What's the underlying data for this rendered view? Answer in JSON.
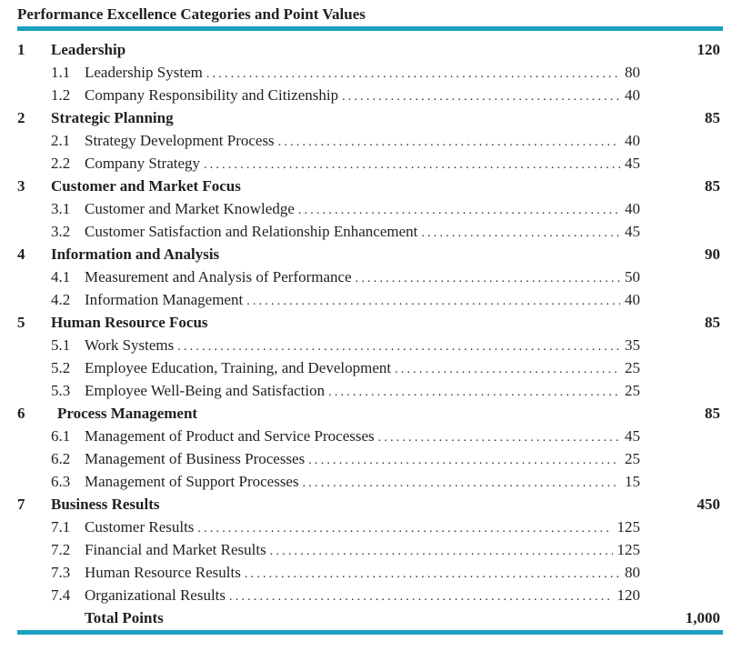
{
  "title": "Performance Excellence Categories and Point Values",
  "categories": [
    {
      "num": "1",
      "name": "Leadership",
      "points": "120",
      "subs": [
        {
          "num": "1.1",
          "name": "Leadership System",
          "points": "80"
        },
        {
          "num": "1.2",
          "name": "Company Responsibility and Citizenship",
          "points": "40"
        }
      ]
    },
    {
      "num": "2",
      "name": "Strategic Planning",
      "points": "85",
      "subs": [
        {
          "num": "2.1",
          "name": "Strategy Development Process",
          "points": "40"
        },
        {
          "num": "2.2",
          "name": "Company Strategy",
          "points": "45"
        }
      ]
    },
    {
      "num": "3",
      "name": "Customer and Market Focus",
      "points": "85",
      "subs": [
        {
          "num": "3.1",
          "name": "Customer and Market Knowledge",
          "points": "40"
        },
        {
          "num": "3.2",
          "name": "Customer Satisfaction and Relationship Enhancement",
          "points": "45"
        }
      ]
    },
    {
      "num": "4",
      "name": "Information and Analysis",
      "points": "90",
      "subs": [
        {
          "num": "4.1",
          "name": "Measurement and Analysis of Performance",
          "points": "50"
        },
        {
          "num": "4.2",
          "name": "Information Management",
          "points": "40"
        }
      ]
    },
    {
      "num": "5",
      "name": "Human Resource Focus",
      "points": "85",
      "subs": [
        {
          "num": "5.1",
          "name": "Work Systems",
          "points": "35"
        },
        {
          "num": "5.2",
          "name": "Employee Education, Training, and Development",
          "points": "25"
        },
        {
          "num": "5.3",
          "name": "Employee Well-Being and Satisfaction",
          "points": "25"
        }
      ]
    },
    {
      "num": "6",
      "name": "Process Management",
      "points": "85",
      "indent": true,
      "subs": [
        {
          "num": "6.1",
          "name": "Management of Product and Service Processes",
          "points": "45"
        },
        {
          "num": "6.2",
          "name": "Management of Business Processes",
          "points": "25"
        },
        {
          "num": "6.3",
          "name": "Management of Support Processes",
          "points": "15"
        }
      ]
    },
    {
      "num": "7",
      "name": "Business Results",
      "points": "450",
      "subs": [
        {
          "num": "7.1",
          "name": "Customer Results",
          "points": "125"
        },
        {
          "num": "7.2",
          "name": "Financial and Market Results",
          "points": "125"
        },
        {
          "num": "7.3",
          "name": "Human Resource Results",
          "points": "80"
        },
        {
          "num": "7.4",
          "name": "Organizational Results",
          "points": "120"
        }
      ]
    }
  ],
  "total": {
    "label": "Total Points",
    "points": "1,000"
  },
  "colors": {
    "rule": "#1aa1c0",
    "text": "#231f20"
  }
}
